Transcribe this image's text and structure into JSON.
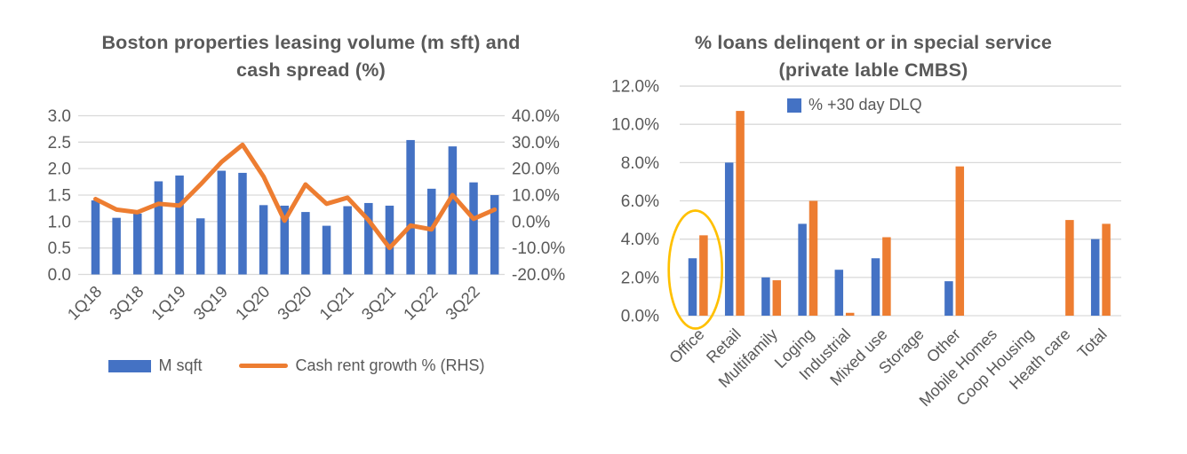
{
  "colors": {
    "bar_blue": "#4472C4",
    "accent_orange": "#ED7D31",
    "highlight_yellow": "#FFC000",
    "grid": "#D9D9D9",
    "text": "#595959"
  },
  "chart_data": [
    {
      "type": "combo-bar-line",
      "title": "Boston properties leasing volume (m sft) and cash spread (%)",
      "title_lines": [
        "Boston properties leasing volume (m sft) and",
        "cash spread (%)"
      ],
      "categories": [
        "1Q18",
        "2Q18",
        "3Q18",
        "4Q18",
        "1Q19",
        "2Q19",
        "3Q19",
        "4Q19",
        "1Q20",
        "2Q20",
        "3Q20",
        "4Q20",
        "1Q21",
        "2Q21",
        "3Q21",
        "4Q21",
        "1Q22",
        "2Q22",
        "3Q22",
        "4Q22"
      ],
      "x_tick_labels": [
        "1Q18",
        "3Q18",
        "1Q19",
        "3Q19",
        "1Q20",
        "3Q20",
        "1Q21",
        "3Q21",
        "1Q22",
        "3Q22"
      ],
      "series": [
        {
          "name": "M sqft",
          "kind": "bar",
          "axis": "left",
          "color": "#4472C4",
          "values": [
            1.4,
            1.07,
            1.15,
            1.76,
            1.87,
            1.06,
            1.96,
            1.92,
            1.31,
            1.3,
            1.18,
            0.92,
            1.29,
            1.35,
            1.3,
            2.54,
            1.62,
            2.42,
            1.74,
            1.5
          ]
        },
        {
          "name": "Cash rent growth % (RHS)",
          "kind": "line",
          "axis": "right",
          "color": "#ED7D31",
          "values": [
            8.5,
            4.5,
            3.5,
            6.7,
            6.0,
            14.0,
            22.5,
            29.0,
            17.0,
            0.3,
            14.0,
            6.7,
            9.0,
            0.5,
            -10.0,
            -1.5,
            -3.0,
            10.0,
            1.0,
            4.5
          ]
        }
      ],
      "left_axis": {
        "min": 0,
        "max": 3,
        "tick_labels": [
          "3.0",
          "2.5",
          "2.0",
          "1.5",
          "1.0",
          "0.5",
          "0.0"
        ]
      },
      "right_axis": {
        "min": -20,
        "max": 40,
        "tick_labels": [
          "40.0%",
          "30.0%",
          "20.0%",
          "10.0%",
          "0.0%",
          "-10.0%",
          "-20.0%"
        ]
      },
      "grid": true,
      "legend_position": "bottom"
    },
    {
      "type": "bar",
      "title": "% loans delinqent or in special service (private lable CMBS)",
      "title_lines": [
        "% loans delinqent or in special service",
        "(private lable CMBS)"
      ],
      "categories": [
        "Office",
        "Retail",
        "Multifamily",
        "Loging",
        "Industrial",
        "Mixed use",
        "Storage",
        "Other",
        "Mobile Homes",
        "Coop Housing",
        "Heath care",
        "Total"
      ],
      "series": [
        {
          "legend_label": "% +30 day DLQ",
          "color": "#4472C4",
          "values": [
            3.0,
            8.0,
            2.0,
            4.8,
            2.4,
            3.0,
            0,
            1.8,
            0,
            0,
            0,
            4.0
          ]
        },
        {
          "legend_label": null,
          "color": "#ED7D31",
          "values": [
            4.2,
            10.7,
            1.85,
            6.0,
            0.15,
            4.1,
            0,
            7.8,
            0,
            0,
            5.0,
            4.8
          ]
        }
      ],
      "y_axis": {
        "min": 0,
        "max": 12,
        "tick_labels": [
          "12.0%",
          "10.0%",
          "8.0%",
          "6.0%",
          "4.0%",
          "2.0%",
          "0.0%"
        ]
      },
      "legend": {
        "label": "% +30 day DLQ",
        "swatch_color": "#4472C4",
        "position": "top-center"
      },
      "annotation": {
        "shape": "ellipse",
        "around_category": "Office",
        "color": "#FFC000"
      },
      "grid": true,
      "legend_position": "top"
    }
  ]
}
